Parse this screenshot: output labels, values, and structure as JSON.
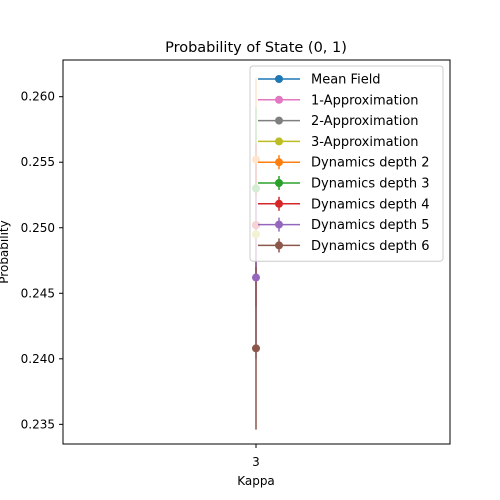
{
  "chart_data": {
    "type": "scatter",
    "title": "Probability of State (0, 1)",
    "xlabel": "Kappa",
    "ylabel": "Probability",
    "categories": [
      "3"
    ],
    "ylim": [
      0.2335,
      0.2628
    ],
    "yticks": [
      0.235,
      0.24,
      0.245,
      0.25,
      0.255,
      0.26
    ],
    "ytick_labels": [
      "0.235",
      "0.240",
      "0.245",
      "0.250",
      "0.255",
      "0.260"
    ],
    "legend_position": "top-right",
    "series": [
      {
        "name": "Mean Field",
        "values": [
          0.2502
        ],
        "color": "#1f77b4"
      },
      {
        "name": "1-Approximation",
        "values": [
          0.2502
        ],
        "color": "#e377c2"
      },
      {
        "name": "2-Approximation",
        "values": [
          0.2502
        ],
        "color": "#7f7f7f"
      },
      {
        "name": "3-Approximation",
        "values": [
          0.2495
        ],
        "color": "#bcbd22"
      },
      {
        "name": "Dynamics depth 2",
        "values": [
          0.2552
        ],
        "error": [
          0.0062
        ],
        "color": "#ff7f0e"
      },
      {
        "name": "Dynamics depth 3",
        "values": [
          0.253
        ],
        "error": [
          0.0062
        ],
        "color": "#2ca02c"
      },
      {
        "name": "Dynamics depth 4",
        "values": [
          0.2502
        ],
        "error": [
          0.0062
        ],
        "color": "#d62728"
      },
      {
        "name": "Dynamics depth 5",
        "values": [
          0.2462
        ],
        "error": [
          0.0062
        ],
        "color": "#9467bd"
      },
      {
        "name": "Dynamics depth 6",
        "values": [
          0.2408
        ],
        "error": [
          0.0062
        ],
        "color": "#8c564b"
      }
    ]
  }
}
